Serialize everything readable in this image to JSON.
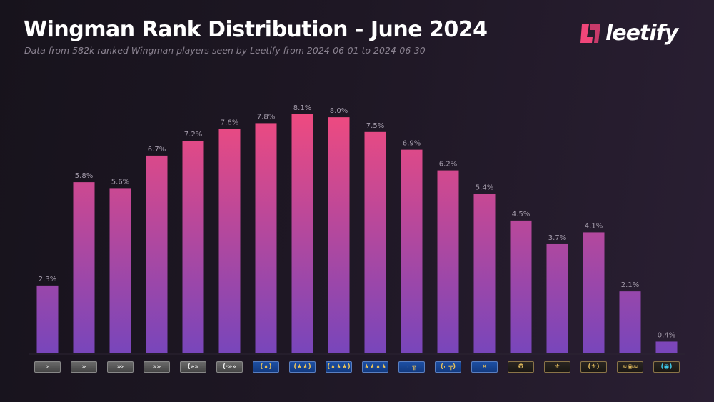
{
  "header": {
    "title": "Wingman Rank Distribution - June 2024",
    "subtitle": "Data from 582k ranked Wingman players seen by Leetify from 2024-06-01 to 2024-06-30",
    "logo_text": "leetify"
  },
  "colors": {
    "bar_top": "#ee4a80",
    "bar_bottom": "#7846bb",
    "logo": "#f0467a"
  },
  "chart_data": {
    "type": "bar",
    "title": "Wingman Rank Distribution - June 2024",
    "xlabel": "",
    "ylabel": "",
    "ylim": [
      0,
      8.1
    ],
    "grid": false,
    "categories": [
      "silver-1",
      "silver-2",
      "silver-3",
      "silver-4",
      "silver-elite",
      "silver-elite-master",
      "gold-nova-1",
      "gold-nova-2",
      "gold-nova-3",
      "gold-nova-master",
      "master-guardian-1",
      "master-guardian-2",
      "master-guardian-elite",
      "distinguished-master-guardian",
      "legendary-eagle",
      "legendary-eagle-master",
      "supreme-master-first-class",
      "global-elite"
    ],
    "values": [
      2.3,
      5.8,
      5.6,
      6.7,
      7.2,
      7.6,
      7.8,
      8.1,
      8.0,
      7.5,
      6.9,
      6.2,
      5.4,
      4.5,
      3.7,
      4.1,
      2.1,
      0.4
    ],
    "data_labels": [
      "2.3%",
      "5.8%",
      "5.6%",
      "6.7%",
      "7.2%",
      "7.6%",
      "7.8%",
      "8.1%",
      "8.0%",
      "7.5%",
      "6.9%",
      "6.2%",
      "5.4%",
      "4.5%",
      "3.7%",
      "4.1%",
      "2.1%",
      "0.4%"
    ]
  }
}
